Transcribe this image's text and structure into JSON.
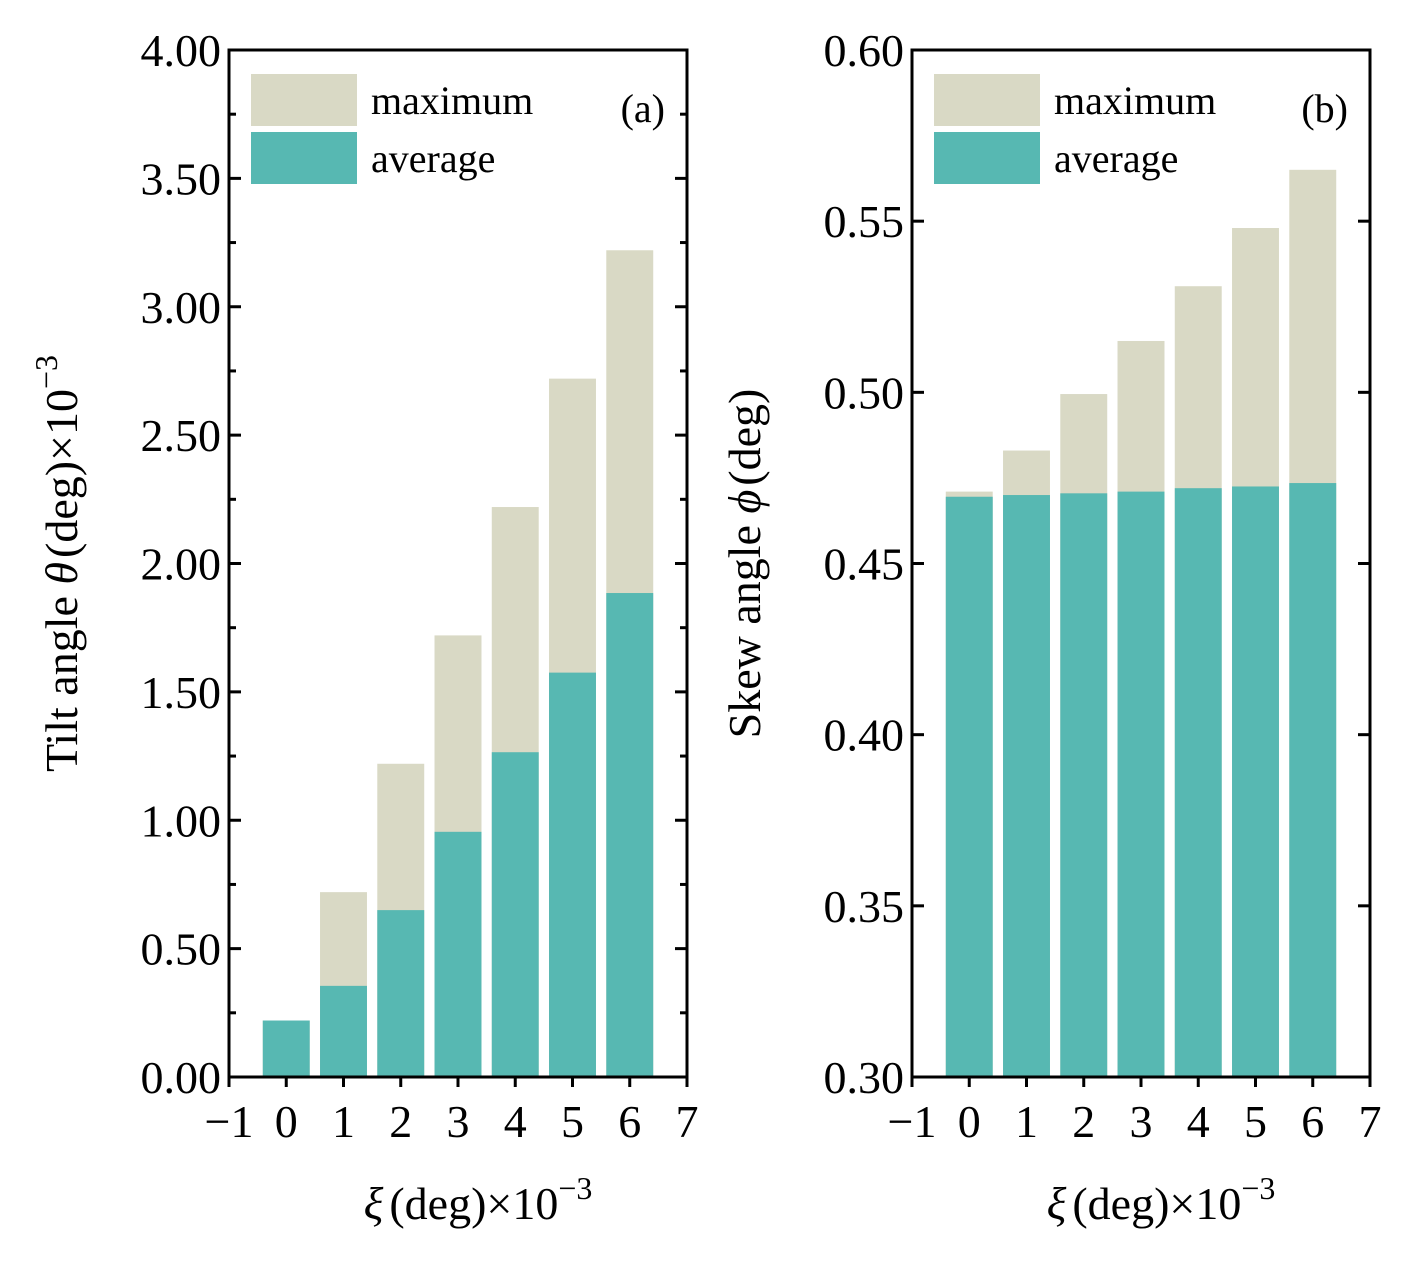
{
  "colors": {
    "maximum": "#d9d9c5",
    "average": "#57b8b2"
  },
  "chart_data": [
    {
      "type": "bar",
      "panel_label": "(a)",
      "x": [
        0,
        1,
        2,
        3,
        4,
        5,
        6
      ],
      "xlim": [
        -1,
        7
      ],
      "x_ticks": [
        "−1",
        "0",
        "1",
        "2",
        "3",
        "4",
        "5",
        "6",
        "7"
      ],
      "xlabel": {
        "symbol": "ξ",
        "text": "(deg)×10",
        "exp": "−3"
      },
      "ylabel": {
        "text": "Tilt angle ",
        "symbol": "θ",
        "text2": "(deg)×10",
        "exp": "−3"
      },
      "ylim": [
        0,
        4
      ],
      "y_ticks": [
        "0.00",
        "0.50",
        "1.00",
        "1.50",
        "2.00",
        "2.50",
        "3.00",
        "3.50",
        "4.00"
      ],
      "legend": {
        "position": "top-left",
        "entries": [
          "maximum",
          "average"
        ]
      },
      "series": [
        {
          "name": "maximum",
          "values": [
            0.22,
            0.72,
            1.22,
            1.72,
            2.22,
            2.72,
            3.22
          ]
        },
        {
          "name": "average",
          "values": [
            0.22,
            0.355,
            0.65,
            0.955,
            1.265,
            1.575,
            1.885
          ]
        }
      ]
    },
    {
      "type": "bar",
      "panel_label": "(b)",
      "x": [
        0,
        1,
        2,
        3,
        4,
        5,
        6
      ],
      "xlim": [
        -1,
        7
      ],
      "x_ticks": [
        "−1",
        "0",
        "1",
        "2",
        "3",
        "4",
        "5",
        "6",
        "7"
      ],
      "xlabel": {
        "symbol": "ξ",
        "text": "(deg)×10",
        "exp": "−3"
      },
      "ylabel": {
        "text": "Skew angle ",
        "symbol": "ϕ",
        "text2": "(deg)",
        "exp": ""
      },
      "ylim": [
        0.3,
        0.6
      ],
      "y_ticks": [
        "0.30",
        "0.35",
        "0.40",
        "0.45",
        "0.50",
        "0.55",
        "0.60"
      ],
      "legend": {
        "position": "top-left",
        "entries": [
          "maximum",
          "average"
        ]
      },
      "series": [
        {
          "name": "maximum",
          "values": [
            0.471,
            0.483,
            0.4995,
            0.515,
            0.531,
            0.548,
            0.565
          ]
        },
        {
          "name": "average",
          "values": [
            0.4695,
            0.47,
            0.4705,
            0.471,
            0.472,
            0.4725,
            0.4735
          ]
        }
      ]
    }
  ]
}
